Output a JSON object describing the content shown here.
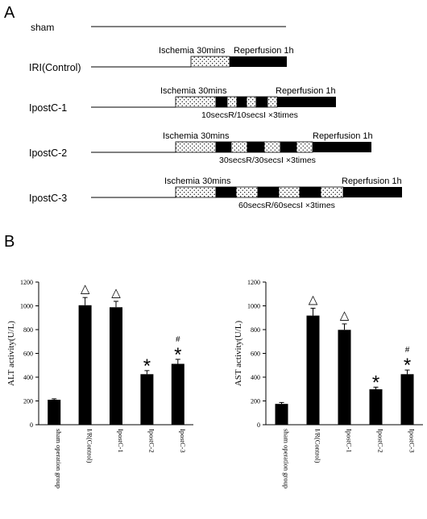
{
  "panel_a": {
    "letter": "A",
    "rows": [
      {
        "label": "sham",
        "ischemia_label": "",
        "reperfusion_label": "",
        "protocol_label": "",
        "cycles": 0
      },
      {
        "label": "IRI(Control)",
        "ischemia_label": "Ischemia 30mins",
        "reperfusion_label": "Reperfusion 1h",
        "protocol_label": "",
        "cycles": 0
      },
      {
        "label": "IpostC-1",
        "ischemia_label": "Ischemia 30mins",
        "reperfusion_label": "Reperfusion 1h",
        "protocol_label": "10secsR/10secsI ×3times",
        "cycles": 3
      },
      {
        "label": "IpostC-2",
        "ischemia_label": "Ischemia 30mins",
        "reperfusion_label": "Reperfusion 1h",
        "protocol_label": "30secsR/30secsI ×3times",
        "cycles": 3
      },
      {
        "label": "IpostC-3",
        "ischemia_label": "Ischemia 30mins",
        "reperfusion_label": "Reperfusion 1h",
        "protocol_label": "60secsR/60secsI ×3times",
        "cycles": 3
      }
    ]
  },
  "panel_b": {
    "letter": "B"
  },
  "chart_data": [
    {
      "type": "bar",
      "categories": [
        "sham operation group",
        "I/R(Control)",
        "IpostC-1",
        "IpostC-2",
        "IpostC-3"
      ],
      "values": [
        210,
        1005,
        988,
        425,
        512
      ],
      "errors": [
        8,
        65,
        50,
        30,
        38
      ],
      "markers": [
        "",
        "△",
        "△",
        "*",
        "*"
      ],
      "extra_markers": [
        "",
        "",
        "",
        "",
        "#"
      ],
      "title": "",
      "xlabel": "",
      "ylabel": "ALT activity(U/L)",
      "ylim": [
        0,
        1200
      ],
      "yticks": [
        0,
        200,
        400,
        600,
        800,
        1000,
        1200
      ],
      "grid": false
    },
    {
      "type": "bar",
      "categories": [
        "sham operation group",
        "I/R(Control)",
        "IpostC-1",
        "IpostC-2",
        "IpostC-3"
      ],
      "values": [
        175,
        918,
        798,
        298,
        425
      ],
      "errors": [
        12,
        62,
        50,
        18,
        35
      ],
      "markers": [
        "",
        "△",
        "△",
        "*",
        "*"
      ],
      "extra_markers": [
        "",
        "",
        "",
        "",
        "#"
      ],
      "title": "",
      "xlabel": "",
      "ylabel": "AST activity(U/L)",
      "ylim": [
        0,
        1200
      ],
      "yticks": [
        0,
        200,
        400,
        600,
        800,
        1000,
        1200
      ],
      "grid": false
    }
  ],
  "colors": {
    "ink": "#000000",
    "dotted_fill": "#ffffff"
  }
}
